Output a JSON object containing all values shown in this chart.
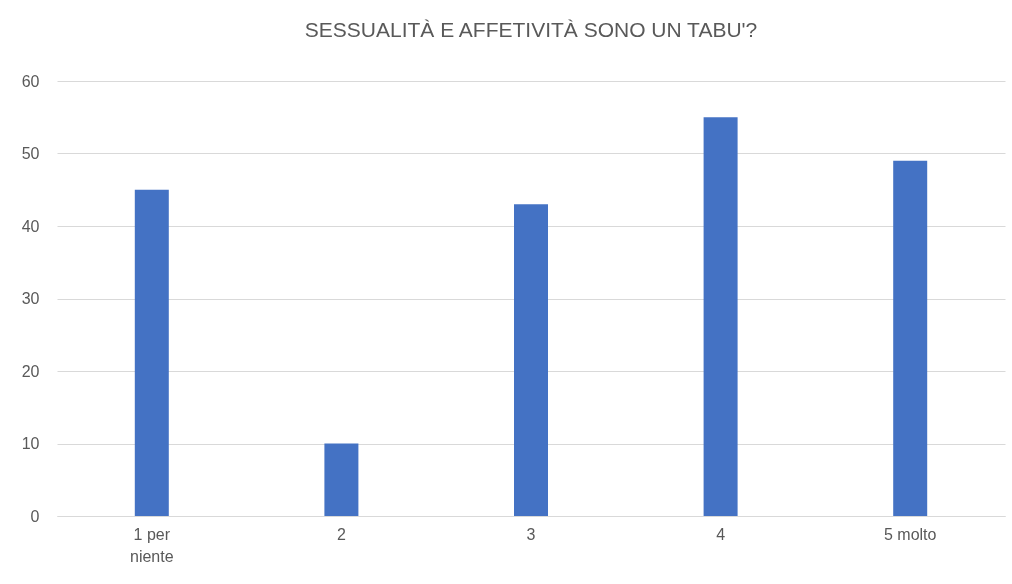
{
  "chart_data": {
    "type": "bar",
    "title": "SESSUALITÀ E AFFETIVITÀ SONO UN TABU'?",
    "categories": [
      "1 per niente",
      "2",
      "3",
      "4",
      "5 molto"
    ],
    "values": [
      45,
      10,
      43,
      55,
      49
    ],
    "color": "#4472c4",
    "ylim": [
      0,
      60
    ],
    "yticks": [
      0,
      10,
      20,
      30,
      40,
      50,
      60
    ],
    "grid": "y"
  }
}
